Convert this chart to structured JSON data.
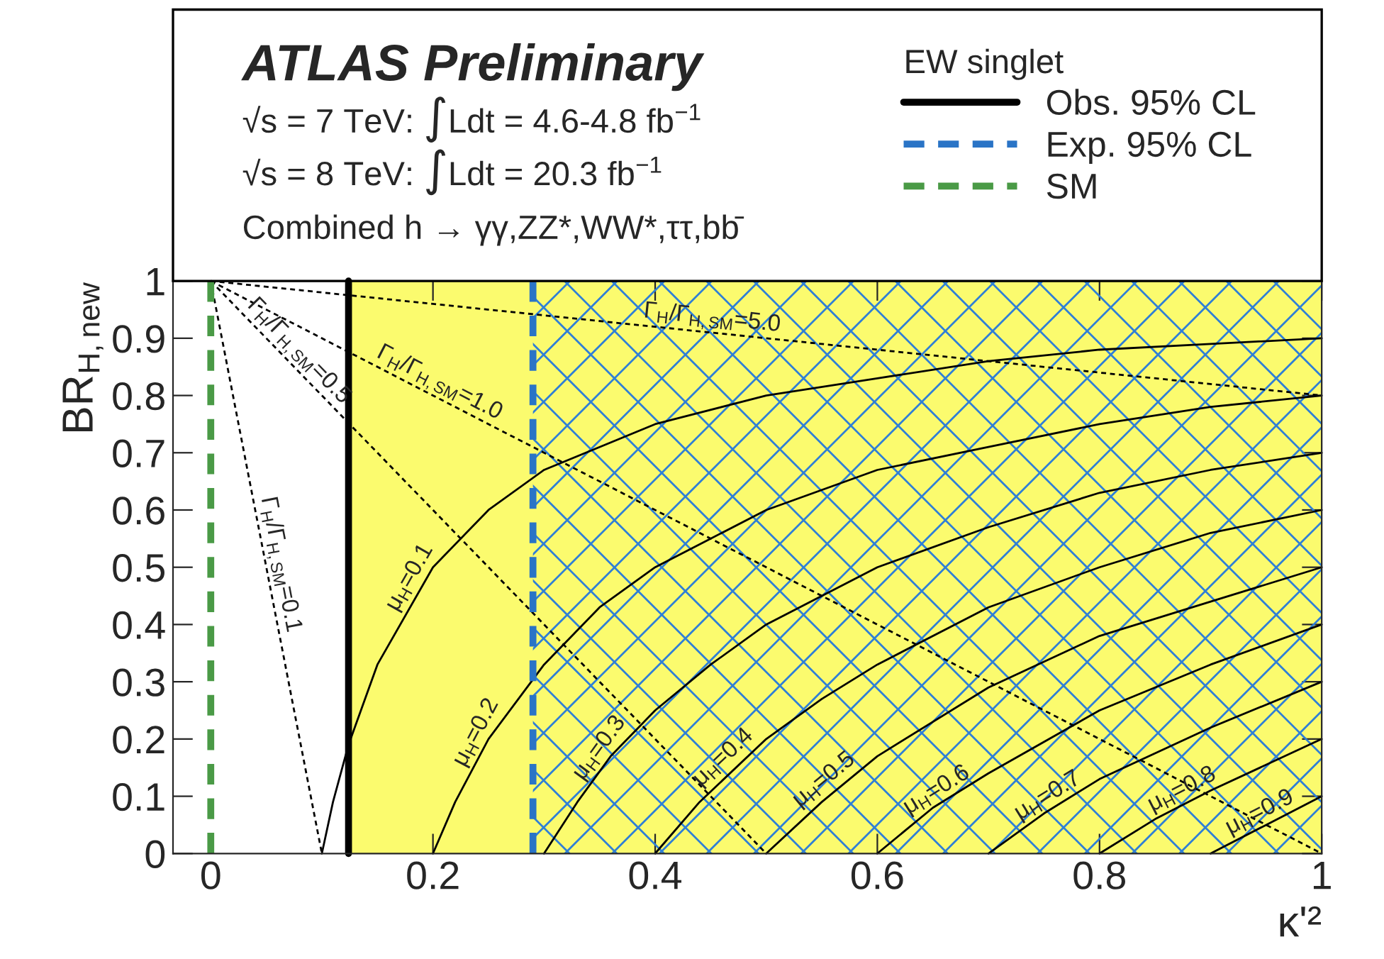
{
  "chart_data": {
    "type": "line",
    "xlabel": "κ'²",
    "ylabel": "BR$_{H,new}$",
    "legend_title": "EW singlet",
    "legend": "top",
    "xlim": [
      -0.034,
      1.0
    ],
    "ylim": [
      0,
      1
    ],
    "xticks": [
      0,
      0.2,
      0.4,
      0.6,
      0.8,
      1
    ],
    "yticks": [
      0,
      0.1,
      0.2,
      0.3,
      0.4,
      0.5,
      0.6,
      0.7,
      0.8,
      0.9,
      1
    ],
    "grid": false,
    "bands": [
      {
        "axis": "x",
        "from": 0.124,
        "to": 1.0,
        "color": "#fbfb6e"
      },
      {
        "axis": "x",
        "from": 0.29,
        "to": 1.0,
        "color": "#2f7fd6"
      }
    ],
    "series": [
      {
        "x": [
          0.1,
          0.11,
          0.124,
          0.15,
          0.2,
          0.25,
          0.3,
          0.4,
          0.5,
          0.6,
          0.7,
          0.8,
          0.9,
          1.0
        ],
        "values": [
          0,
          0.09,
          0.19,
          0.33,
          0.5,
          0.6,
          0.67,
          0.75,
          0.8,
          0.83,
          0.86,
          0.88,
          0.89,
          0.9
        ],
        "color": "#000000",
        "line_style": "solid"
      },
      {
        "x": [
          0.2,
          0.22,
          0.25,
          0.3,
          0.35,
          0.4,
          0.5,
          0.6,
          0.7,
          0.8,
          0.9,
          1.0
        ],
        "values": [
          0,
          0.09,
          0.2,
          0.33,
          0.43,
          0.5,
          0.6,
          0.67,
          0.71,
          0.75,
          0.78,
          0.8
        ],
        "color": "#000000",
        "line_style": "solid"
      },
      {
        "x": [
          0.3,
          0.33,
          0.36,
          0.4,
          0.45,
          0.5,
          0.6,
          0.7,
          0.8,
          0.9,
          1.0
        ],
        "values": [
          0,
          0.09,
          0.17,
          0.25,
          0.33,
          0.4,
          0.5,
          0.57,
          0.63,
          0.67,
          0.7
        ],
        "color": "#000000",
        "line_style": "solid"
      },
      {
        "x": [
          0.4,
          0.44,
          0.5,
          0.55,
          0.6,
          0.7,
          0.8,
          0.9,
          1.0
        ],
        "values": [
          0,
          0.09,
          0.2,
          0.27,
          0.33,
          0.43,
          0.5,
          0.56,
          0.6
        ],
        "color": "#000000",
        "line_style": "solid"
      },
      {
        "x": [
          0.5,
          0.55,
          0.6,
          0.7,
          0.8,
          0.9,
          1.0
        ],
        "values": [
          0,
          0.09,
          0.17,
          0.29,
          0.38,
          0.44,
          0.5
        ],
        "color": "#000000",
        "line_style": "solid"
      },
      {
        "x": [
          0.6,
          0.65,
          0.7,
          0.8,
          0.9,
          1.0
        ],
        "values": [
          0,
          0.08,
          0.14,
          0.25,
          0.33,
          0.4
        ],
        "color": "#000000",
        "line_style": "solid"
      },
      {
        "x": [
          0.7,
          0.75,
          0.8,
          0.9,
          1.0
        ],
        "values": [
          0,
          0.07,
          0.13,
          0.22,
          0.3
        ],
        "color": "#000000",
        "line_style": "solid"
      },
      {
        "x": [
          0.8,
          0.85,
          0.9,
          1.0
        ],
        "values": [
          0,
          0.06,
          0.11,
          0.2
        ],
        "color": "#000000",
        "line_style": "solid"
      },
      {
        "x": [
          0.9,
          0.95,
          1.0
        ],
        "values": [
          0,
          0.05,
          0.1
        ],
        "color": "#000000",
        "line_style": "solid"
      },
      {
        "x": [
          0,
          0.1
        ],
        "values": [
          1,
          0
        ],
        "color": "#000000",
        "line_style": "dotted"
      },
      {
        "x": [
          0,
          0.5
        ],
        "values": [
          1,
          0
        ],
        "color": "#000000",
        "line_style": "dotted"
      },
      {
        "x": [
          0,
          1.0
        ],
        "values": [
          1,
          0
        ],
        "color": "#000000",
        "line_style": "dotted"
      },
      {
        "x": [
          0,
          1.0
        ],
        "values": [
          1,
          0.8
        ],
        "color": "#000000",
        "line_style": "dotted"
      },
      {
        "name": "Obs. 95% CL",
        "x": [
          0.124,
          0.124
        ],
        "values": [
          0,
          1
        ],
        "color": "#000000",
        "line_style": "solid"
      },
      {
        "name": "Exp. 95% CL",
        "x": [
          0.29,
          0.29
        ],
        "values": [
          0,
          1
        ],
        "color": "#2a74c6",
        "line_style": "dashed"
      },
      {
        "name": "SM",
        "x": [
          0,
          0
        ],
        "values": [
          0,
          1
        ],
        "color": "#4a9a46",
        "line_style": "dashed"
      }
    ],
    "annotations": [
      "ATLAS Preliminary",
      "√s = 7 TeV: ∫Ldt = 4.6-4.8 fb$^{−1}$",
      "√s = 8 TeV: ∫Ldt = 20.3 fb$^{−1}$",
      "Combined h → γγ,ZZ*,WW*,ττ,bb̄",
      {
        "text": "Γ$_{H}$/Γ$_{H,SM}$=0.1",
        "x": 0.05,
        "y": 0.5
      },
      {
        "text": "Γ$_{H}$/Γ$_{H,SM}$=0.5",
        "x": 0.07,
        "y": 0.86
      },
      {
        "text": "Γ$_{H}$/Γ$_{H,SM}$=1.0",
        "x": 0.2,
        "y": 0.8
      },
      {
        "text": "Γ$_{H}$/Γ$_{H,SM}$=5.0",
        "x": 0.45,
        "y": 0.91
      },
      {
        "text": "μ$_{H}$=0.1",
        "x": 0.19,
        "y": 0.47
      },
      {
        "text": "μ$_{H}$=0.2",
        "x": 0.25,
        "y": 0.2
      },
      {
        "text": "μ$_{H}$=0.3",
        "x": 0.36,
        "y": 0.17
      },
      {
        "text": "μ$_{H}$=0.4",
        "x": 0.47,
        "y": 0.15
      },
      {
        "text": "μ$_{H}$=0.5",
        "x": 0.56,
        "y": 0.11
      },
      {
        "text": "μ$_{H}$=0.6",
        "x": 0.66,
        "y": 0.09
      },
      {
        "text": "μ$_{H}$=0.7",
        "x": 0.76,
        "y": 0.08
      },
      {
        "text": "μ$_{H}$=0.8",
        "x": 0.88,
        "y": 0.09
      },
      {
        "text": "μ$_{H}$=0.9",
        "x": 0.95,
        "y": 0.05
      }
    ]
  }
}
